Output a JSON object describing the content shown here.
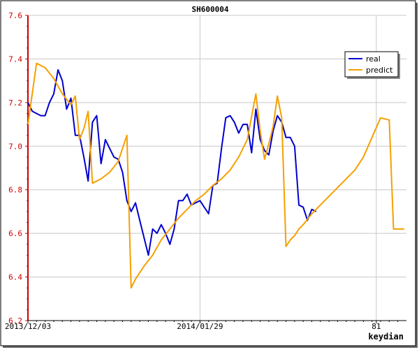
{
  "chart_data": {
    "type": "line",
    "title": "SH600004",
    "xlabel": "keydian",
    "ylabel": "",
    "ylim": [
      6.2,
      7.6
    ],
    "yticks": [
      "6.2",
      "6.4",
      "6.6",
      "6.8",
      "7.0",
      "7.2",
      "7.4",
      "7.6"
    ],
    "xlim": [
      0,
      88
    ],
    "xticks": [
      {
        "value": 0,
        "label": "2013/12/03"
      },
      {
        "value": 40,
        "label": "2014/01/29"
      },
      {
        "value": 81,
        "label": "81"
      }
    ],
    "grid": true,
    "legend_position": "top-right",
    "series": [
      {
        "name": "real",
        "color": "#0000cc",
        "x": [
          0,
          1,
          2,
          3,
          4,
          5,
          6,
          7,
          8,
          9,
          10,
          11,
          12,
          13,
          14,
          15,
          16,
          17,
          18,
          19,
          20,
          21,
          22,
          23,
          24,
          25,
          26,
          27,
          28,
          29,
          30,
          31,
          32,
          33,
          34,
          35,
          36,
          37,
          38,
          39,
          40,
          41,
          42,
          43,
          44,
          45,
          46,
          47,
          48,
          49,
          50,
          51,
          52,
          53,
          54,
          55,
          56,
          57,
          58,
          59,
          60,
          61,
          62,
          63,
          64,
          65,
          66,
          67
        ],
        "y": [
          7.2,
          7.16,
          7.15,
          7.14,
          7.14,
          7.2,
          7.24,
          7.35,
          7.3,
          7.17,
          7.22,
          7.05,
          7.05,
          6.95,
          6.84,
          7.11,
          7.14,
          6.92,
          7.03,
          6.99,
          6.95,
          6.94,
          6.88,
          6.75,
          6.7,
          6.74,
          6.66,
          6.58,
          6.5,
          6.62,
          6.6,
          6.64,
          6.6,
          6.55,
          6.62,
          6.75,
          6.75,
          6.78,
          6.73,
          6.74,
          6.75,
          6.72,
          6.69,
          6.82,
          6.83,
          6.99,
          7.13,
          7.14,
          7.11,
          7.06,
          7.1,
          7.1,
          6.97,
          7.17,
          7.03,
          6.98,
          6.96,
          7.07,
          7.14,
          7.11,
          7.04,
          7.04,
          7.0,
          6.73,
          6.72,
          6.66,
          6.71,
          6.7
        ]
      },
      {
        "name": "predict",
        "color": "#f5a000",
        "x": [
          0,
          2,
          4,
          6,
          8,
          10,
          11,
          12,
          13,
          14,
          15,
          17,
          19,
          21,
          22,
          23,
          24,
          25,
          27,
          29,
          31,
          33,
          35,
          37,
          39,
          41,
          43,
          45,
          47,
          49,
          51,
          53,
          54,
          55,
          56,
          57,
          58,
          59,
          60,
          61,
          62,
          63,
          64,
          66,
          68,
          70,
          72,
          74,
          76,
          78,
          80,
          82,
          84,
          85,
          86,
          87,
          87.5
        ],
        "y": [
          7.1,
          7.38,
          7.36,
          7.31,
          7.24,
          7.19,
          7.23,
          7.03,
          7.08,
          7.16,
          6.83,
          6.85,
          6.88,
          6.93,
          6.99,
          7.05,
          6.35,
          6.39,
          6.45,
          6.5,
          6.57,
          6.62,
          6.67,
          6.71,
          6.75,
          6.78,
          6.82,
          6.85,
          6.89,
          6.95,
          7.03,
          7.24,
          7.07,
          6.94,
          7.01,
          7.09,
          7.23,
          7.13,
          6.54,
          6.57,
          6.59,
          6.62,
          6.64,
          6.69,
          6.73,
          6.77,
          6.81,
          6.85,
          6.89,
          6.95,
          7.04,
          7.13,
          7.12,
          6.62,
          6.62,
          6.62,
          6.62
        ]
      }
    ]
  }
}
